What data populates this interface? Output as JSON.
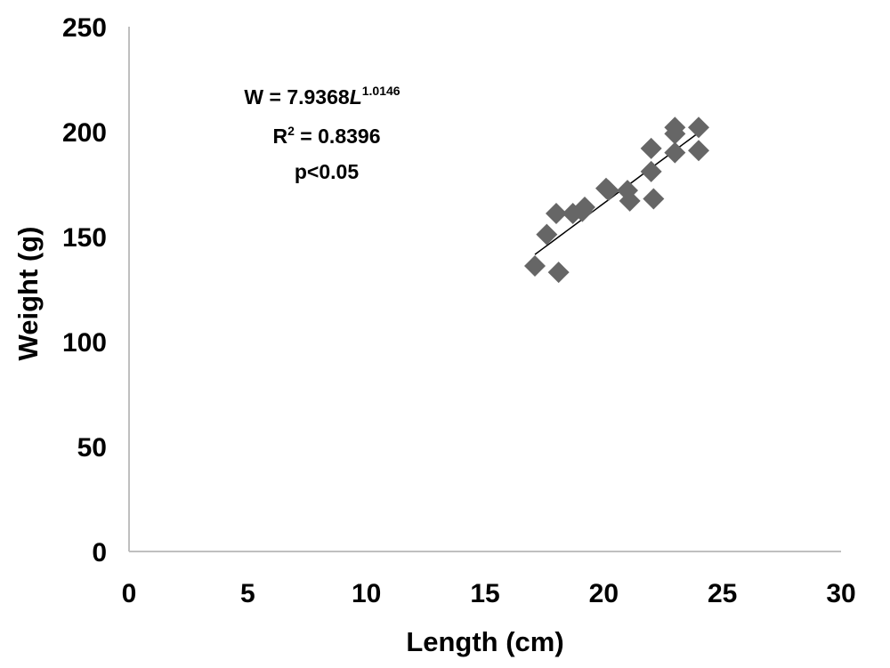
{
  "chart_data": {
    "type": "scatter",
    "xlabel": "Length (cm)",
    "ylabel": "Weight (g)",
    "xlim": [
      0,
      30
    ],
    "ylim": [
      0,
      250
    ],
    "x_ticks": [
      "0",
      "5",
      "10",
      "15",
      "20",
      "25",
      "30"
    ],
    "y_ticks": [
      "0",
      "50",
      "100",
      "150",
      "200",
      "250"
    ],
    "grid": false,
    "legend": "none",
    "marker": "diamond",
    "marker_color": "#666666",
    "trendline_color": "#000000",
    "axis_color": "#bfbfbf",
    "points": [
      {
        "x": 17.1,
        "y": 136
      },
      {
        "x": 17.6,
        "y": 151
      },
      {
        "x": 18.0,
        "y": 161
      },
      {
        "x": 18.1,
        "y": 133
      },
      {
        "x": 18.7,
        "y": 161
      },
      {
        "x": 19.1,
        "y": 162
      },
      {
        "x": 19.2,
        "y": 164
      },
      {
        "x": 20.1,
        "y": 173
      },
      {
        "x": 20.2,
        "y": 172
      },
      {
        "x": 21.0,
        "y": 172
      },
      {
        "x": 21.1,
        "y": 167
      },
      {
        "x": 22.0,
        "y": 192
      },
      {
        "x": 22.0,
        "y": 181
      },
      {
        "x": 22.1,
        "y": 168
      },
      {
        "x": 23.0,
        "y": 202
      },
      {
        "x": 23.0,
        "y": 199
      },
      {
        "x": 23.0,
        "y": 190
      },
      {
        "x": 24.0,
        "y": 202
      },
      {
        "x": 24.0,
        "y": 191
      }
    ],
    "trendline": {
      "x_start": 17.1,
      "x_end": 24.0,
      "a": 7.9368,
      "b": 1.0146
    },
    "annotations": {
      "equation_prefix": "W = 7.9368",
      "equation_var": "L",
      "equation_exponent": "1.0146",
      "r2_prefix": "R",
      "r2_sup": "2",
      "r2_value": " = 0.8396",
      "p_value": "p<0.05"
    }
  }
}
